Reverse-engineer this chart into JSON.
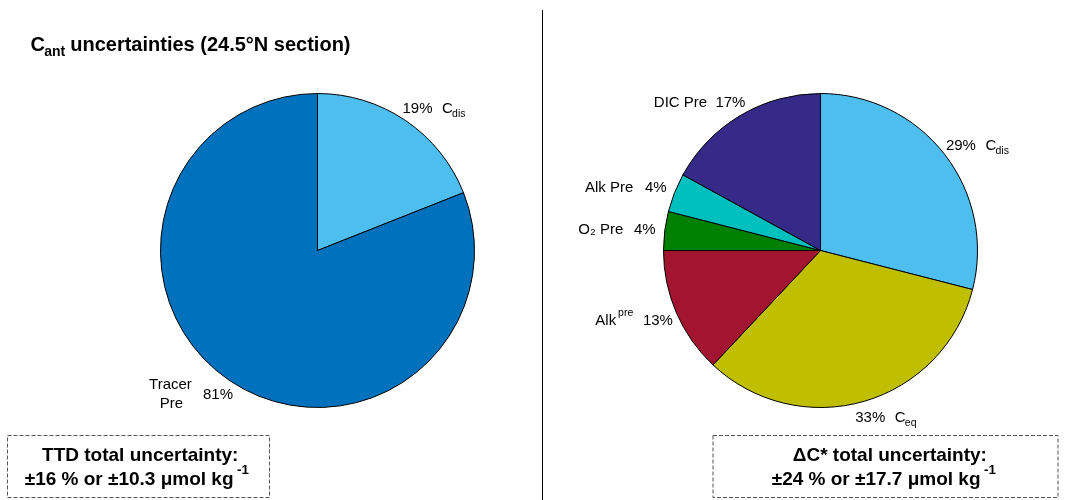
{
  "chart_data": [
    {
      "type": "pie",
      "title": "C$_{ant}$ uncertainties (24.5°N section)",
      "categories": [
        "C$_{dis}$",
        "Tracer\nPre"
      ],
      "values": [
        19,
        81
      ],
      "colors": [
        "#4dbeee",
        "#0072bd"
      ],
      "value_labels": [
        "19%",
        "81%"
      ],
      "annotations": [
        "TTD total uncertainty:\n±16 % or ±10.3 μmol kg$^{-1}$"
      ]
    },
    {
      "type": "pie",
      "categories": [
        "C$_{dis}$",
        "C$_{eq}$",
        "Alk$^{pre}$",
        "O₂ Pre",
        "Alk Pre",
        "DIC Pre"
      ],
      "values": [
        29,
        33,
        13,
        4,
        4,
        17
      ],
      "colors": [
        "#4dbeee",
        "#bfbf00",
        "#a2142f",
        "#008000",
        "#00bfbf",
        "#352a87"
      ],
      "value_labels": [
        "29%",
        "33%",
        "13%",
        "4%",
        "4%",
        "17%"
      ],
      "annotations": [
        "ΔC* total uncertainty:\n±24 % or ±17.7 μmol kg$^{-1}$"
      ]
    }
  ]
}
